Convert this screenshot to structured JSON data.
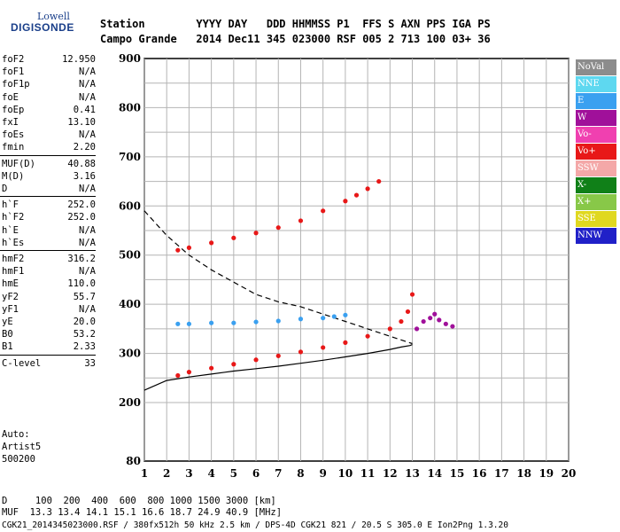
{
  "logo": {
    "line1": "Lowell",
    "line2": "DIGISONDE"
  },
  "header": {
    "row1": "Station        YYYY DAY   DDD HHMMSS P1  FFS S AXN PPS IGA PS",
    "row2": "Campo Grande   2014 Dec11 345 023000 RSF 005 2 713 100 03+ 36"
  },
  "params": [
    {
      "label": "foF2",
      "value": "12.950"
    },
    {
      "label": "foF1",
      "value": "N/A"
    },
    {
      "label": "foF1p",
      "value": "N/A"
    },
    {
      "label": "foE",
      "value": "N/A"
    },
    {
      "label": "foEp",
      "value": "0.41"
    },
    {
      "label": "fxI",
      "value": "13.10"
    },
    {
      "label": "foEs",
      "value": "N/A"
    },
    {
      "label": "fmin",
      "value": "2.20"
    },
    {
      "label": "MUF(D)",
      "value": "40.88"
    },
    {
      "label": "M(D)",
      "value": "3.16"
    },
    {
      "label": "D",
      "value": "N/A"
    },
    {
      "label": "h`F",
      "value": "252.0"
    },
    {
      "label": "h`F2",
      "value": "252.0"
    },
    {
      "label": "h`E",
      "value": "N/A"
    },
    {
      "label": "h`Es",
      "value": "N/A"
    },
    {
      "label": "hmF2",
      "value": "316.2"
    },
    {
      "label": "hmF1",
      "value": "N/A"
    },
    {
      "label": "hmE",
      "value": "110.0"
    },
    {
      "label": "yF2",
      "value": "55.7"
    },
    {
      "label": "yF1",
      "value": "N/A"
    },
    {
      "label": "yE",
      "value": "20.0"
    },
    {
      "label": "B0",
      "value": "53.2"
    },
    {
      "label": "B1",
      "value": "2.33"
    },
    {
      "label": "C-level",
      "value": "33"
    }
  ],
  "auto": {
    "line1": "Auto:",
    "line2": "Artist5",
    "line3": "500200"
  },
  "legend": [
    {
      "label": "NoVal",
      "color": "#8c8c8c"
    },
    {
      "label": "NNE",
      "color": "#5ed8f0"
    },
    {
      "label": "E",
      "color": "#3aa0f0"
    },
    {
      "label": "W",
      "color": "#a0109a"
    },
    {
      "label": "Vo-",
      "color": "#f040b0"
    },
    {
      "label": "Vo+",
      "color": "#e81818"
    },
    {
      "label": "SSW",
      "color": "#f4a8a8"
    },
    {
      "label": "X-",
      "color": "#108018"
    },
    {
      "label": "X+",
      "color": "#88c848"
    },
    {
      "label": "SSE",
      "color": "#e0d820"
    },
    {
      "label": "NNW",
      "color": "#2020c8"
    }
  ],
  "bottom": {
    "row1": "D     100  200  400  600  800 1000 1500 3000 [km]",
    "row2": "MUF  13.3 13.4 14.1 15.1 16.6 18.7 24.9 40.9 [MHz]",
    "row3": "CGK21_2014345023000.RSF / 380fx512h 50 kHz 2.5 km / DPS-4D CGK21 821 / 20.5 S 305.0 E Ion2Png 1.3.20"
  },
  "chart_data": {
    "type": "scatter",
    "title": "",
    "xlabel": "",
    "ylabel": "",
    "xlim": [
      1,
      20
    ],
    "ylim": [
      80,
      900
    ],
    "x_ticks": [
      1,
      2,
      3,
      4,
      5,
      6,
      7,
      8,
      9,
      10,
      11,
      12,
      13,
      14,
      15,
      16,
      17,
      18,
      19,
      20
    ],
    "y_ticks": [
      80,
      200,
      300,
      400,
      500,
      600,
      700,
      800,
      900
    ],
    "grid": true,
    "series": [
      {
        "name": "Vo+",
        "color": "#e81818",
        "x": [
          2.5,
          3,
          4,
          5,
          6,
          7,
          8,
          9,
          10,
          11,
          12,
          12.5,
          12.8,
          13.0
        ],
        "y": [
          255,
          262,
          270,
          278,
          287,
          295,
          303,
          312,
          322,
          335,
          350,
          365,
          385,
          420
        ]
      },
      {
        "name": "Vo+",
        "color": "#e81818",
        "x": [
          2.5,
          3,
          4,
          5,
          6,
          7,
          8,
          9,
          10,
          10.5,
          11,
          11.5
        ],
        "y": [
          510,
          515,
          525,
          535,
          545,
          556,
          570,
          590,
          610,
          622,
          635,
          650
        ]
      },
      {
        "name": "E",
        "color": "#3aa0f0",
        "x": [
          2.5,
          3,
          4,
          5,
          6,
          7,
          8,
          9,
          9.5,
          10
        ],
        "y": [
          360,
          360,
          362,
          362,
          364,
          366,
          370,
          372,
          375,
          378
        ]
      },
      {
        "name": "W",
        "color": "#a0109a",
        "x": [
          13.2,
          13.5,
          13.8,
          14,
          14.2,
          14.5,
          14.8
        ],
        "y": [
          350,
          365,
          372,
          380,
          368,
          360,
          355
        ]
      }
    ],
    "lines": [
      {
        "name": "",
        "style": "solid",
        "color": "#000000",
        "x": [
          1,
          2,
          3,
          4,
          5,
          6,
          7,
          8,
          9,
          10,
          11,
          12,
          12.5,
          12.9,
          13.0
        ],
        "y": [
          225,
          245,
          252,
          258,
          264,
          269,
          274,
          280,
          286,
          293,
          300,
          308,
          313,
          316,
          318
        ]
      },
      {
        "name": "",
        "style": "dashed",
        "color": "#000000",
        "x": [
          1,
          1.5,
          2,
          3,
          4,
          5,
          6,
          7,
          8,
          9,
          10,
          11,
          12,
          13
        ],
        "y": [
          590,
          565,
          540,
          500,
          470,
          445,
          420,
          405,
          395,
          380,
          365,
          350,
          335,
          320
        ]
      }
    ]
  }
}
